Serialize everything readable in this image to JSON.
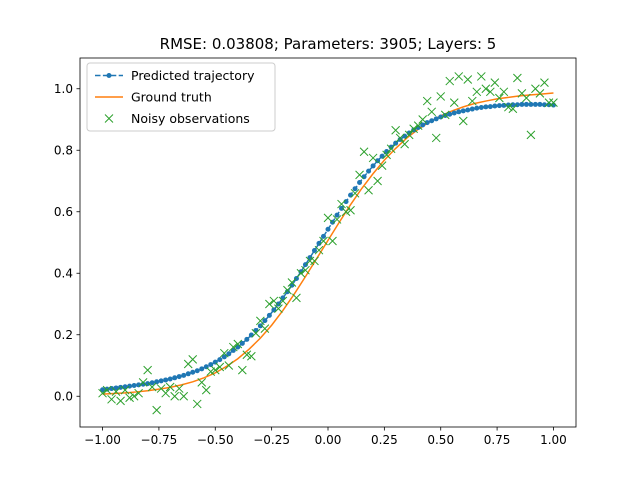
{
  "chart_data": {
    "type": "line",
    "title": "RMSE: 0.03808; Parameters: 3905; Layers: 5",
    "xlabel": "",
    "ylabel": "",
    "xlim": [
      -1.1,
      1.1
    ],
    "ylim": [
      -0.1,
      1.1
    ],
    "xticks": [
      -1.0,
      -0.75,
      -0.5,
      -0.25,
      0.0,
      0.25,
      0.5,
      0.75,
      1.0
    ],
    "xtick_labels": [
      "−1.00",
      "−0.75",
      "−0.50",
      "−0.25",
      "0.00",
      "0.25",
      "0.50",
      "0.75",
      "1.00"
    ],
    "yticks": [
      0.0,
      0.2,
      0.4,
      0.6,
      0.8,
      1.0
    ],
    "ytick_labels": [
      "0.0",
      "0.2",
      "0.4",
      "0.6",
      "0.8",
      "1.0"
    ],
    "grid": false,
    "legend_position": "top-left",
    "colors": {
      "predicted": "#1f77b4",
      "ground_truth": "#ff7f0e",
      "noisy": "#2ca02c"
    },
    "legend": [
      {
        "key": "predicted",
        "label": "Predicted trajectory"
      },
      {
        "key": "ground_truth",
        "label": "Ground truth"
      },
      {
        "key": "noisy",
        "label": "Noisy observations"
      }
    ],
    "series": {
      "predicted": {
        "name": "Predicted trajectory",
        "x": [
          -1.0,
          -0.98,
          -0.96,
          -0.94,
          -0.92,
          -0.9,
          -0.88,
          -0.86,
          -0.84,
          -0.82,
          -0.8,
          -0.78,
          -0.76,
          -0.74,
          -0.72,
          -0.7,
          -0.68,
          -0.66,
          -0.64,
          -0.62,
          -0.6,
          -0.58,
          -0.56,
          -0.54,
          -0.52,
          -0.5,
          -0.48,
          -0.46,
          -0.44,
          -0.42,
          -0.4,
          -0.38,
          -0.36,
          -0.34,
          -0.32,
          -0.3,
          -0.28,
          -0.26,
          -0.24,
          -0.22,
          -0.2,
          -0.18,
          -0.16,
          -0.14,
          -0.12,
          -0.1,
          -0.08,
          -0.06,
          -0.04,
          -0.02,
          0.0,
          0.02,
          0.04,
          0.06,
          0.08,
          0.1,
          0.12,
          0.14,
          0.16,
          0.18,
          0.2,
          0.22,
          0.24,
          0.26,
          0.28,
          0.3,
          0.32,
          0.34,
          0.36,
          0.38,
          0.4,
          0.42,
          0.44,
          0.46,
          0.48,
          0.5,
          0.52,
          0.54,
          0.56,
          0.58,
          0.6,
          0.62,
          0.64,
          0.66,
          0.68,
          0.7,
          0.72,
          0.74,
          0.76,
          0.78,
          0.8,
          0.82,
          0.84,
          0.86,
          0.88,
          0.9,
          0.92,
          0.94,
          0.96,
          0.98,
          1.0
        ],
        "y": [
          0.021,
          0.023,
          0.025,
          0.027,
          0.029,
          0.031,
          0.033,
          0.035,
          0.037,
          0.039,
          0.041,
          0.044,
          0.047,
          0.05,
          0.053,
          0.056,
          0.06,
          0.064,
          0.068,
          0.073,
          0.078,
          0.083,
          0.089,
          0.096,
          0.103,
          0.111,
          0.119,
          0.128,
          0.138,
          0.149,
          0.16,
          0.172,
          0.185,
          0.199,
          0.214,
          0.229,
          0.246,
          0.263,
          0.281,
          0.3,
          0.32,
          0.34,
          0.361,
          0.383,
          0.405,
          0.428,
          0.451,
          0.474,
          0.497,
          0.52,
          0.543,
          0.566,
          0.589,
          0.611,
          0.633,
          0.654,
          0.675,
          0.695,
          0.714,
          0.732,
          0.749,
          0.766,
          0.781,
          0.796,
          0.81,
          0.823,
          0.835,
          0.846,
          0.856,
          0.866,
          0.874,
          0.882,
          0.89,
          0.896,
          0.902,
          0.908,
          0.913,
          0.917,
          0.921,
          0.925,
          0.928,
          0.931,
          0.934,
          0.937,
          0.939,
          0.941,
          0.942,
          0.944,
          0.945,
          0.946,
          0.947,
          0.948,
          0.948,
          0.949,
          0.949,
          0.949,
          0.949,
          0.949,
          0.948,
          0.948,
          0.947
        ]
      },
      "ground_truth": {
        "name": "Ground truth",
        "x": [
          -1.0,
          -0.95,
          -0.9,
          -0.85,
          -0.8,
          -0.75,
          -0.7,
          -0.65,
          -0.6,
          -0.55,
          -0.5,
          -0.45,
          -0.4,
          -0.35,
          -0.3,
          -0.25,
          -0.2,
          -0.15,
          -0.1,
          -0.05,
          0.0,
          0.05,
          0.1,
          0.15,
          0.2,
          0.25,
          0.3,
          0.35,
          0.4,
          0.45,
          0.5,
          0.55,
          0.6,
          0.65,
          0.7,
          0.75,
          0.8,
          0.85,
          0.9,
          0.95,
          1.0
        ],
        "y": [
          0.007,
          0.009,
          0.011,
          0.014,
          0.018,
          0.023,
          0.029,
          0.037,
          0.047,
          0.06,
          0.076,
          0.097,
          0.122,
          0.153,
          0.189,
          0.231,
          0.279,
          0.332,
          0.389,
          0.448,
          0.507,
          0.566,
          0.623,
          0.676,
          0.724,
          0.768,
          0.806,
          0.84,
          0.868,
          0.892,
          0.912,
          0.928,
          0.941,
          0.952,
          0.96,
          0.967,
          0.972,
          0.977,
          0.98,
          0.983,
          0.986
        ]
      },
      "noisy": {
        "name": "Noisy observations",
        "x": [
          -1.0,
          -0.98,
          -0.96,
          -0.94,
          -0.92,
          -0.9,
          -0.88,
          -0.86,
          -0.84,
          -0.82,
          -0.8,
          -0.78,
          -0.76,
          -0.74,
          -0.72,
          -0.7,
          -0.68,
          -0.66,
          -0.64,
          -0.62,
          -0.6,
          -0.58,
          -0.56,
          -0.54,
          -0.52,
          -0.5,
          -0.48,
          -0.46,
          -0.44,
          -0.42,
          -0.4,
          -0.38,
          -0.36,
          -0.34,
          -0.32,
          -0.3,
          -0.28,
          -0.26,
          -0.24,
          -0.22,
          -0.2,
          -0.18,
          -0.16,
          -0.14,
          -0.12,
          -0.1,
          -0.08,
          -0.06,
          -0.04,
          -0.02,
          0.0,
          0.02,
          0.04,
          0.06,
          0.08,
          0.1,
          0.12,
          0.14,
          0.16,
          0.18,
          0.2,
          0.22,
          0.24,
          0.26,
          0.28,
          0.3,
          0.32,
          0.34,
          0.36,
          0.38,
          0.4,
          0.42,
          0.44,
          0.46,
          0.48,
          0.5,
          0.52,
          0.54,
          0.56,
          0.58,
          0.6,
          0.62,
          0.64,
          0.66,
          0.68,
          0.7,
          0.72,
          0.74,
          0.76,
          0.78,
          0.8,
          0.82,
          0.84,
          0.86,
          0.88,
          0.9,
          0.92,
          0.94,
          0.96,
          0.98,
          1.0
        ],
        "y": [
          0.01,
          0.02,
          -0.01,
          0.015,
          -0.015,
          0.02,
          -0.005,
          0.0,
          0.01,
          0.045,
          0.085,
          0.03,
          -0.045,
          0.025,
          0.01,
          0.03,
          0.0,
          0.025,
          0.0,
          0.105,
          0.12,
          -0.025,
          0.045,
          0.02,
          0.08,
          0.085,
          0.095,
          0.14,
          0.1,
          0.16,
          0.17,
          0.085,
          0.135,
          0.13,
          0.205,
          0.245,
          0.22,
          0.3,
          0.31,
          0.285,
          0.31,
          0.345,
          0.37,
          0.32,
          0.4,
          0.41,
          0.44,
          0.44,
          0.475,
          0.505,
          0.58,
          0.505,
          0.575,
          0.625,
          0.6,
          0.605,
          0.66,
          0.72,
          0.795,
          0.67,
          0.775,
          0.7,
          0.75,
          0.785,
          0.805,
          0.865,
          0.84,
          0.82,
          0.85,
          0.87,
          0.88,
          0.9,
          0.96,
          0.925,
          0.84,
          0.975,
          0.915,
          1.025,
          0.955,
          1.04,
          0.895,
          1.03,
          0.96,
          0.99,
          1.04,
          1.0,
          0.99,
          1.02,
          0.97,
          0.99,
          0.94,
          0.935,
          1.035,
          0.985,
          0.97,
          0.85,
          1.0,
          0.985,
          1.02,
          0.955,
          0.955
        ]
      }
    }
  }
}
